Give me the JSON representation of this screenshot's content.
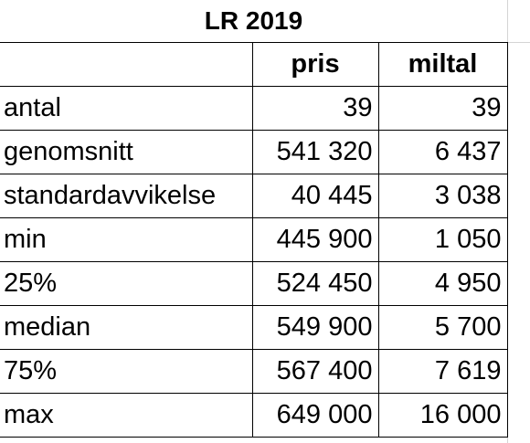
{
  "title": "LR 2019",
  "columns": {
    "label": "",
    "pris": "pris",
    "miltal": "miltal"
  },
  "rows": [
    {
      "label": "antal",
      "pris": "39",
      "miltal": "39"
    },
    {
      "label": "genomsnitt",
      "pris": "541 320",
      "miltal": "6 437"
    },
    {
      "label": "standardavvikelse",
      "pris": "40 445",
      "miltal": "3 038"
    },
    {
      "label": "min",
      "pris": "445 900",
      "miltal": "1 050"
    },
    {
      "label": "25%",
      "pris": "524 450",
      "miltal": "4 950"
    },
    {
      "label": "median",
      "pris": "549 900",
      "miltal": "5 700"
    },
    {
      "label": "75%",
      "pris": "567 400",
      "miltal": "7 619"
    },
    {
      "label": "max",
      "pris": "649 000",
      "miltal": "16 000"
    }
  ]
}
